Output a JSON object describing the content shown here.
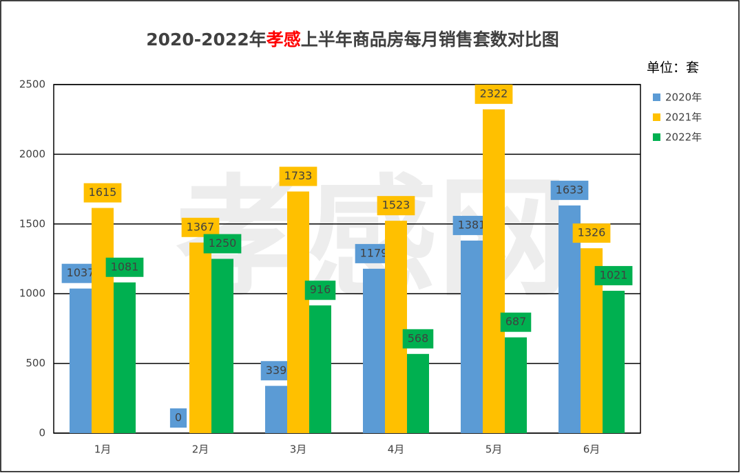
{
  "chart_data": {
    "type": "bar",
    "title": [
      "2020-2022年",
      "孝感",
      "上半年商品房每月销售套数对比图"
    ],
    "title_highlight_color": "#ff0000",
    "unit_label": "单位：套",
    "watermark": "孝感网",
    "categories": [
      "1月",
      "2月",
      "3月",
      "4月",
      "5月",
      "6月"
    ],
    "series": [
      {
        "name": "2020年",
        "color": "#5b9bd5",
        "values": [
          1037,
          0,
          339,
          1179,
          1381,
          1633
        ]
      },
      {
        "name": "2021年",
        "color": "#ffc000",
        "values": [
          1615,
          1367,
          1733,
          1523,
          2322,
          1326
        ]
      },
      {
        "name": "2022年",
        "color": "#00b050",
        "values": [
          1081,
          1250,
          916,
          568,
          687,
          1021
        ]
      }
    ],
    "ylim": [
      0,
      2500
    ],
    "yticks": [
      0,
      500,
      1000,
      1500,
      2000,
      2500
    ],
    "grid": true,
    "legend": "right",
    "data_labels": true
  }
}
